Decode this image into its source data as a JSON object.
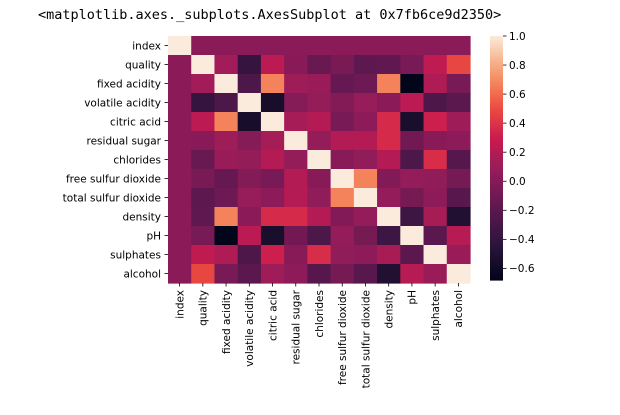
{
  "output_repr": "<matplotlib.axes._subplots.AxesSubplot at 0x7fb6ce9d2350>",
  "chart_data": {
    "type": "heatmap",
    "title": "",
    "xlabel": "",
    "ylabel": "",
    "labels": [
      "index",
      "quality",
      "fixed acidity",
      "volatile acidity",
      "citric acid",
      "residual sugar",
      "chlorides",
      "free sulfur dioxide",
      "total sulfur dioxide",
      "density",
      "pH",
      "sulphates",
      "alcohol"
    ],
    "matrix": [
      [
        1.0,
        0.02,
        0.02,
        0.02,
        0.02,
        0.02,
        0.02,
        0.02,
        0.02,
        0.02,
        0.02,
        0.02,
        0.02
      ],
      [
        0.02,
        1.0,
        0.12,
        -0.39,
        0.23,
        0.01,
        -0.13,
        -0.05,
        -0.19,
        -0.17,
        -0.06,
        0.25,
        0.48
      ],
      [
        0.02,
        0.12,
        1.0,
        -0.26,
        0.67,
        0.11,
        0.09,
        -0.15,
        -0.11,
        0.67,
        -0.68,
        0.18,
        -0.06
      ],
      [
        0.02,
        -0.39,
        -0.26,
        1.0,
        -0.55,
        0.0,
        0.06,
        -0.01,
        0.08,
        0.02,
        0.23,
        -0.26,
        -0.2
      ],
      [
        0.02,
        0.23,
        0.67,
        -0.55,
        1.0,
        0.14,
        0.2,
        -0.06,
        0.04,
        0.36,
        -0.54,
        0.31,
        0.11
      ],
      [
        0.02,
        0.01,
        0.11,
        0.0,
        0.14,
        1.0,
        0.06,
        0.19,
        0.2,
        0.36,
        -0.09,
        0.01,
        0.04
      ],
      [
        0.02,
        -0.13,
        0.09,
        0.06,
        0.2,
        0.06,
        1.0,
        0.01,
        0.05,
        0.2,
        -0.27,
        0.37,
        -0.22
      ],
      [
        0.02,
        -0.05,
        -0.15,
        -0.01,
        -0.06,
        0.19,
        0.01,
        1.0,
        0.67,
        -0.02,
        0.07,
        0.05,
        -0.07
      ],
      [
        0.02,
        -0.19,
        -0.11,
        0.08,
        0.04,
        0.2,
        0.05,
        0.67,
        1.0,
        0.07,
        -0.07,
        0.04,
        -0.21
      ],
      [
        0.02,
        -0.17,
        0.67,
        0.02,
        0.36,
        0.36,
        0.2,
        -0.02,
        0.07,
        1.0,
        -0.34,
        0.15,
        -0.5
      ],
      [
        0.02,
        -0.06,
        -0.68,
        0.23,
        -0.54,
        -0.09,
        -0.27,
        0.07,
        -0.07,
        -0.34,
        1.0,
        -0.2,
        0.21
      ],
      [
        0.02,
        0.25,
        0.18,
        -0.26,
        0.31,
        0.01,
        0.37,
        0.05,
        0.04,
        0.15,
        -0.2,
        1.0,
        0.09
      ],
      [
        0.02,
        0.48,
        -0.06,
        -0.2,
        0.11,
        0.04,
        -0.22,
        -0.07,
        -0.21,
        -0.5,
        0.21,
        0.09,
        1.0
      ]
    ],
    "colormap": "rocket",
    "vmin": -0.68,
    "vmax": 1.0,
    "colorbar_ticks": [
      1.0,
      0.8,
      0.6,
      0.4,
      0.2,
      0.0,
      -0.2,
      -0.4,
      -0.6
    ],
    "colorbar_tick_labels": [
      "1.0",
      "0.8",
      "0.6",
      "0.4",
      "0.2",
      "0.0",
      "−0.2",
      "−0.4",
      "−0.6"
    ],
    "grid": false
  }
}
